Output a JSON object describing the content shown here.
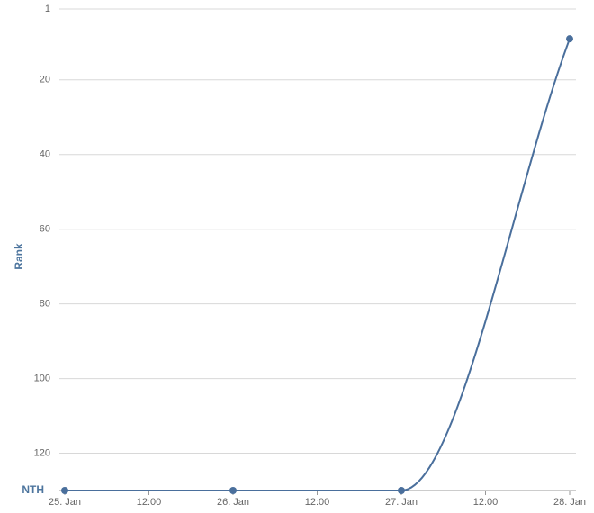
{
  "chart_data": {
    "type": "line",
    "y_label": "Rank",
    "x": [
      25,
      26,
      27,
      28
    ],
    "series": [
      {
        "name": "Rank",
        "color": "#4a6f9c",
        "values": [
          130,
          130,
          130,
          9
        ]
      }
    ],
    "xlim": [
      25,
      28
    ],
    "xticks": [
      {
        "value": 25,
        "label": "25. Jan"
      },
      {
        "value": 25.5,
        "label": "12:00"
      },
      {
        "value": 26,
        "label": "26. Jan"
      },
      {
        "value": 26.5,
        "label": "12:00"
      },
      {
        "value": 27,
        "label": "27. Jan"
      },
      {
        "value": 27.5,
        "label": "12:00"
      },
      {
        "value": 28,
        "label": "28. Jan"
      }
    ],
    "ylim": [
      1,
      130
    ],
    "yticks": [
      1,
      20,
      40,
      60,
      80,
      100,
      120,
      {
        "value": 130,
        "label": "NTH"
      }
    ],
    "y_reversed": true,
    "grid": true
  }
}
